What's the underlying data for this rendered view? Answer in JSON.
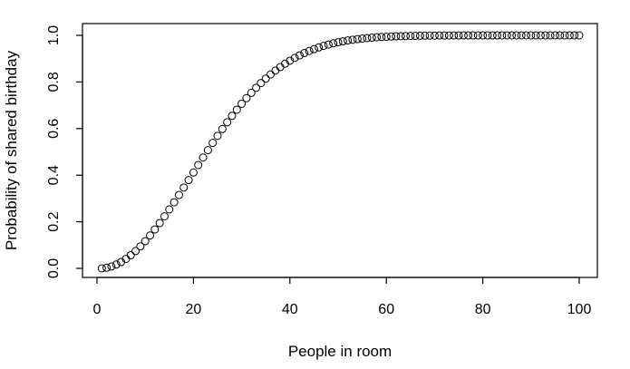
{
  "chart_data": {
    "type": "scatter",
    "title": "",
    "xlabel": "People in room",
    "ylabel": "Probability of shared birthday",
    "xlim": [
      1,
      100
    ],
    "ylim": [
      0,
      1
    ],
    "x_ticks": [
      0,
      20,
      40,
      60,
      80,
      100
    ],
    "y_ticks": [
      0.0,
      0.2,
      0.4,
      0.6,
      0.8,
      1.0
    ],
    "x_tick_labels": [
      "0",
      "20",
      "40",
      "60",
      "80",
      "100"
    ],
    "y_tick_labels": [
      "0.0",
      "0.2",
      "0.4",
      "0.6",
      "0.8",
      "1.0"
    ],
    "grid": false,
    "marker": "open-circle",
    "series": [
      {
        "x": [
          1,
          2,
          3,
          4,
          5,
          6,
          7,
          8,
          9,
          10,
          11,
          12,
          13,
          14,
          15,
          16,
          17,
          18,
          19,
          20,
          21,
          22,
          23,
          24,
          25,
          26,
          27,
          28,
          29,
          30,
          31,
          32,
          33,
          34,
          35,
          36,
          37,
          38,
          39,
          40,
          41,
          42,
          43,
          44,
          45,
          46,
          47,
          48,
          49,
          50,
          51,
          52,
          53,
          54,
          55,
          56,
          57,
          58,
          59,
          60,
          61,
          62,
          63,
          64,
          65,
          66,
          67,
          68,
          69,
          70,
          71,
          72,
          73,
          74,
          75,
          76,
          77,
          78,
          79,
          80,
          81,
          82,
          83,
          84,
          85,
          86,
          87,
          88,
          89,
          90,
          91,
          92,
          93,
          94,
          95,
          96,
          97,
          98,
          99,
          100
        ],
        "values": [
          0.0,
          0.0027,
          0.0082,
          0.0164,
          0.0271,
          0.0405,
          0.0562,
          0.0743,
          0.0946,
          0.1169,
          0.1411,
          0.167,
          0.1944,
          0.2231,
          0.2529,
          0.2836,
          0.315,
          0.3469,
          0.3791,
          0.4114,
          0.4437,
          0.4757,
          0.5073,
          0.5383,
          0.5687,
          0.5982,
          0.6269,
          0.6545,
          0.681,
          0.7063,
          0.7305,
          0.7533,
          0.775,
          0.7953,
          0.8144,
          0.8322,
          0.8487,
          0.864,
          0.8782,
          0.8912,
          0.9032,
          0.914,
          0.924,
          0.9329,
          0.941,
          0.9483,
          0.9548,
          0.9606,
          0.9658,
          0.9704,
          0.9744,
          0.978,
          0.9811,
          0.9839,
          0.9863,
          0.9883,
          0.9901,
          0.9917,
          0.993,
          0.9941,
          0.995,
          0.9959,
          0.9966,
          0.9971,
          0.9976,
          0.998,
          0.9984,
          0.9987,
          0.9989,
          0.9991,
          0.9993,
          0.9994,
          0.9995,
          0.9996,
          0.9997,
          0.9998,
          0.9998,
          0.9998,
          0.9999,
          0.9999,
          0.9999,
          0.9999,
          0.9999,
          1.0,
          1.0,
          1.0,
          1.0,
          1.0,
          1.0,
          1.0,
          1.0,
          1.0,
          1.0,
          1.0,
          1.0,
          1.0,
          1.0,
          1.0,
          1.0,
          1.0
        ]
      }
    ]
  }
}
